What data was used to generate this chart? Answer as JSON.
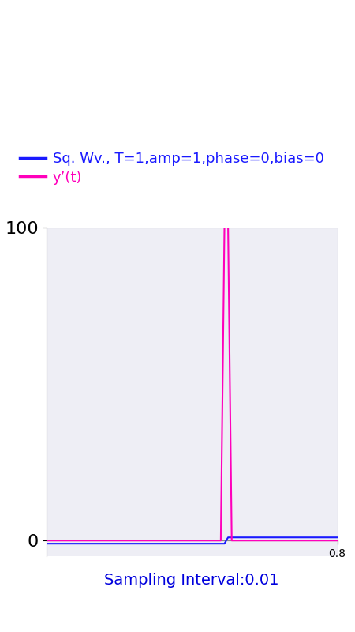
{
  "sampling_interval": 0.01,
  "period": 1.0,
  "amplitude": 1.0,
  "phase": 0.0,
  "bias": 0.0,
  "xlim": [
    0,
    0.8
  ],
  "ylim": [
    -5,
    100
  ],
  "ytick_top": 100,
  "ytick_zero": 0,
  "xtick_right": 0.8,
  "grid_color": "#c8c8c8",
  "sq_wave_color": "#1a1aff",
  "deriv_color": "#ff00bb",
  "legend_sq_label": "Sq. Wv., T=1,amp=1,phase=0,bias=0",
  "legend_deriv_label": "y’(t)",
  "legend_color_sq": "#1a1aff",
  "legend_color_deriv": "#ff00bb",
  "xlabel_text": "Sampling Interval:0.01",
  "xlabel_color": "#0000dd",
  "bg_color": "#ffffff",
  "plot_bg_color": "#eeeef5",
  "figsize": [
    4.5,
    8.0
  ],
  "dpi": 100,
  "top_bar_color": "#00aaff",
  "tab_bar_color": "#cc0077",
  "nav_bar_color": "#000000"
}
